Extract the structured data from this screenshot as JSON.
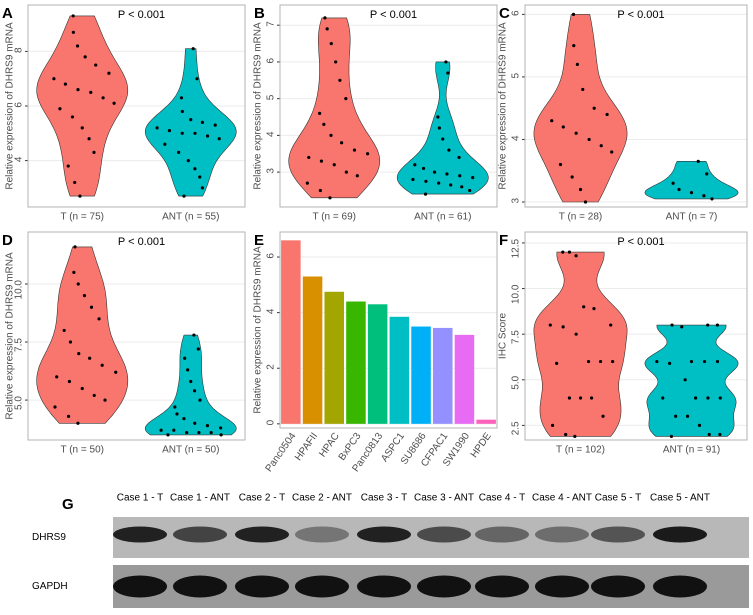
{
  "chart_data": [
    {
      "type": "violin",
      "panel_label": "A",
      "ylabel": "Relative expression of DHRS9 mRNA",
      "annotation": "P < 0.001",
      "categories": [
        "T (n = 75)",
        "ANT (n = 55)"
      ],
      "ylim": [
        2.3,
        9.7
      ],
      "yticks": [
        4,
        6,
        8
      ],
      "grid": true,
      "series": [
        {
          "color": "#f8766d",
          "values": [
            9.3,
            8.7,
            8.2,
            7.8,
            7.5,
            7.2,
            7.0,
            6.8,
            6.6,
            6.5,
            6.3,
            6.1,
            5.9,
            5.6,
            5.2,
            4.8,
            4.3,
            3.8,
            3.2,
            2.7
          ]
        },
        {
          "color": "#00bfc4",
          "values": [
            8.1,
            7.0,
            6.3,
            5.8,
            5.5,
            5.4,
            5.3,
            5.2,
            5.1,
            5.0,
            5.0,
            4.9,
            4.8,
            4.6,
            4.3,
            4.0,
            3.7,
            3.4,
            3.0,
            2.7
          ]
        }
      ]
    },
    {
      "type": "violin",
      "panel_label": "B",
      "ylabel": "Relative expression of DHRS9 mRNA",
      "annotation": "P < 0.001",
      "categories": [
        "T (n = 69)",
        "ANT (n = 61)"
      ],
      "ylim": [
        2.05,
        7.55
      ],
      "yticks": [
        3,
        4,
        5,
        6,
        7
      ],
      "grid": true,
      "series": [
        {
          "color": "#f8766d",
          "values": [
            7.2,
            6.9,
            6.5,
            6.0,
            5.5,
            5.0,
            4.6,
            4.3,
            4.0,
            3.8,
            3.6,
            3.5,
            3.4,
            3.3,
            3.2,
            3.0,
            2.9,
            2.7,
            2.5,
            2.3
          ]
        },
        {
          "color": "#00bfc4",
          "values": [
            6.0,
            5.7,
            4.5,
            4.2,
            3.9,
            3.6,
            3.4,
            3.2,
            3.1,
            3.0,
            2.95,
            2.9,
            2.85,
            2.8,
            2.75,
            2.7,
            2.65,
            2.6,
            2.5,
            2.4
          ]
        }
      ]
    },
    {
      "type": "violin",
      "panel_label": "C",
      "ylabel": "Relative expression of DHRS9 mRNA",
      "annotation": "P < 0.001",
      "categories": [
        "T (n = 28)",
        "ANT (n = 7)"
      ],
      "ylim": [
        2.92,
        6.15
      ],
      "yticks": [
        3,
        4,
        5,
        6
      ],
      "grid": true,
      "series": [
        {
          "color": "#f8766d",
          "values": [
            6.0,
            5.5,
            5.2,
            4.8,
            4.5,
            4.4,
            4.3,
            4.2,
            4.1,
            4.0,
            3.9,
            3.8,
            3.6,
            3.4,
            3.2,
            3.0
          ]
        },
        {
          "color": "#00bfc4",
          "values": [
            3.65,
            3.45,
            3.3,
            3.2,
            3.15,
            3.1,
            3.05
          ]
        }
      ]
    },
    {
      "type": "violin",
      "panel_label": "D",
      "ylabel": "Relative expression of DHRS9 mRNA",
      "annotation": "P < 0.001",
      "categories": [
        "T (n = 50)",
        "ANT (n = 50)"
      ],
      "ylim": [
        3.28,
        12.24
      ],
      "yticks": [
        {
          "value": 5,
          "label": "5.0"
        },
        {
          "value": 7.5,
          "label": "7.5"
        },
        {
          "value": 10,
          "label": "10.0"
        }
      ],
      "grid": true,
      "series": [
        {
          "color": "#f8766d",
          "values": [
            11.6,
            10.5,
            10.0,
            9.5,
            9.0,
            8.5,
            8.0,
            7.5,
            7.0,
            6.8,
            6.5,
            6.2,
            6.0,
            5.8,
            5.5,
            5.2,
            5.0,
            4.7,
            4.3,
            4.0
          ]
        },
        {
          "color": "#00bfc4",
          "values": [
            7.8,
            7.2,
            6.8,
            6.3,
            5.8,
            5.4,
            5.0,
            4.7,
            4.4,
            4.2,
            4.0,
            3.9,
            3.8,
            3.7,
            3.7,
            3.6,
            3.6,
            3.6,
            3.5,
            3.5
          ]
        }
      ]
    },
    {
      "type": "bar",
      "panel_label": "E",
      "ylabel": "Relative expression of DHRS9 mRNA",
      "categories": [
        "Panc0504",
        "HPAFII",
        "HPAC",
        "BxPC3",
        "Panc0813",
        "ASPC1",
        "SU8686",
        "CFPAC1",
        "SW1990",
        "HPDE"
      ],
      "values": [
        6.6,
        5.3,
        4.75,
        4.4,
        4.3,
        3.85,
        3.5,
        3.45,
        3.2,
        0.15
      ],
      "colors": [
        "#f8766d",
        "#d89000",
        "#a3a500",
        "#39b600",
        "#00bf7d",
        "#00bfc4",
        "#00b0f6",
        "#9590ff",
        "#e76bf3",
        "#ff62bc"
      ],
      "ylim": [
        -0.15,
        6.9
      ],
      "yticks": [
        0,
        2,
        4,
        6
      ],
      "grid": true
    },
    {
      "type": "violin",
      "panel_label": "F",
      "ylabel": "IHC Score",
      "annotation": "P < 0.001",
      "categories": [
        "T (n = 102)",
        "ANT (n = 91)"
      ],
      "ylim": [
        1.7,
        13.1
      ],
      "yticks": [
        {
          "value": 2.5,
          "label": "2.5"
        },
        {
          "value": 5,
          "label": "5.0"
        },
        {
          "value": 7.5,
          "label": "7.5"
        },
        {
          "value": 10,
          "label": "10.0"
        },
        {
          "value": 12.5,
          "label": "12.5"
        }
      ],
      "grid": true,
      "series": [
        {
          "color": "#f8766d",
          "values": [
            12,
            12,
            11.8,
            9,
            8.9,
            8,
            8,
            7.9,
            7.5,
            6,
            6,
            6,
            5.9,
            4,
            4,
            4,
            3,
            2.5,
            2,
            1.9
          ]
        },
        {
          "color": "#00bfc4",
          "values": [
            8,
            8,
            8,
            7.9,
            6,
            6,
            6,
            6,
            5.9,
            5,
            4,
            4,
            4,
            4,
            3,
            3,
            2.5,
            2,
            2,
            1.9
          ]
        }
      ]
    }
  ],
  "blot": {
    "panel_label": "G",
    "lanes": [
      "Case 1 - T",
      "Case 1 - ANT",
      "Case 2 - T",
      "Case 2 - ANT",
      "Case 3 - T",
      "Case 3 - ANT",
      "Case 4 - T",
      "Case 4 - ANT",
      "Case 5 - T",
      "Case 5 - ANT"
    ],
    "rows": [
      "DHRS9",
      "GAPDH"
    ]
  }
}
